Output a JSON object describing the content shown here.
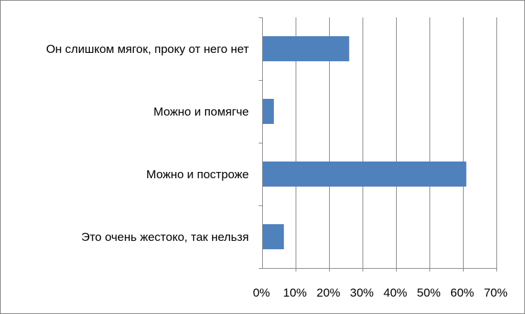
{
  "chart_data": {
    "type": "bar",
    "orientation": "horizontal",
    "categories": [
      "Он слишком мягок, проку от него нет",
      "Можно и помягче",
      "Можно и построже",
      "Это очень жестоко, так нельзя"
    ],
    "values": [
      26,
      3.5,
      61,
      6.5
    ],
    "value_unit": "%",
    "xlim": [
      0,
      70
    ],
    "x_ticks": [
      "0%",
      "10%",
      "20%",
      "30%",
      "40%",
      "50%",
      "60%",
      "70%"
    ],
    "grid": "vertical",
    "legend": "none",
    "title": "",
    "xlabel": "",
    "ylabel": "",
    "bar_color": "#4F81BD",
    "grid_color": "#868686"
  }
}
